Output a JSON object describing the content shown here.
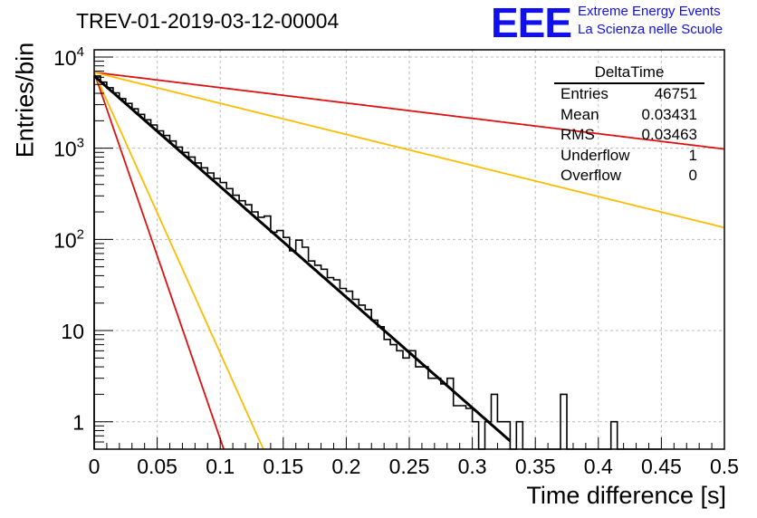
{
  "title": "TREV-01-2019-03-12-00004",
  "logo": {
    "mark": "EEE",
    "line1": "Extreme Energy Events",
    "line2": "La Scienza nelle Scuole"
  },
  "statbox": {
    "name": "DeltaTime",
    "rows": [
      {
        "label": "Entries",
        "value": "46751"
      },
      {
        "label": "Mean",
        "value": "0.03431"
      },
      {
        "label": "RMS",
        "value": "0.03463"
      },
      {
        "label": "Underflow",
        "value": "1"
      },
      {
        "label": "Overflow",
        "value": "0"
      }
    ]
  },
  "colors": {
    "histogram": "#000000",
    "fit": "#000000",
    "red_lines": "#dd1111",
    "orange_lines": "#ffbb00",
    "grid": "#bbbbbb",
    "logo": "#1010ee"
  },
  "chart_data": {
    "type": "line",
    "xlabel": "Time difference [s]",
    "ylabel": "Entries/bin",
    "xlim": [
      0,
      0.5
    ],
    "ylim": [
      0.5,
      12000
    ],
    "yscale": "log",
    "grid": true,
    "xticks": [
      "0",
      "0.05",
      "0.1",
      "0.15",
      "0.2",
      "0.25",
      "0.3",
      "0.35",
      "0.4",
      "0.45",
      "0.5"
    ],
    "yticks": [
      {
        "value": 1,
        "label": "1"
      },
      {
        "value": 10,
        "label": "10"
      },
      {
        "value": 100,
        "label": "10",
        "exp": "2"
      },
      {
        "value": 1000,
        "label": "10",
        "exp": "3"
      },
      {
        "value": 10000,
        "label": "10",
        "exp": "4"
      }
    ],
    "histogram": {
      "bin_width": 0.005,
      "counts": [
        6200,
        5300,
        4600,
        4050,
        3500,
        3100,
        2700,
        2350,
        2050,
        1800,
        1550,
        1380,
        1200,
        1030,
        900,
        800,
        690,
        610,
        535,
        465,
        420,
        360,
        305,
        265,
        240,
        200,
        175,
        180,
        120,
        125,
        105,
        75,
        98,
        82,
        58,
        52,
        47,
        38,
        36,
        29,
        27,
        22,
        19,
        17,
        13,
        11,
        8,
        7,
        6,
        5,
        6,
        4,
        4,
        3,
        3,
        2.6,
        3,
        1.5,
        1.5,
        1.4,
        1,
        0,
        1,
        2,
        1,
        1,
        0,
        1,
        0,
        0,
        0,
        0,
        0,
        0,
        2,
        0,
        0,
        0,
        0,
        0,
        0,
        0,
        1,
        0,
        0,
        0,
        0,
        0,
        0,
        0
      ]
    },
    "fit": {
      "amplitude": 6200,
      "tau": 0.0358,
      "x_end": 0.33
    },
    "reference_lines": [
      {
        "color": "red",
        "amplitude": 6800,
        "tau": 0.0108,
        "x_end": 0.5
      },
      {
        "color": "orange",
        "amplitude": 6800,
        "tau": 0.0141,
        "x_end": 0.5
      },
      {
        "color": "red",
        "amplitude": 6800,
        "tau": 0.258,
        "x_end": 0.5
      },
      {
        "color": "orange",
        "amplitude": 6800,
        "tau": 0.1275,
        "x_end": 0.5
      }
    ]
  }
}
